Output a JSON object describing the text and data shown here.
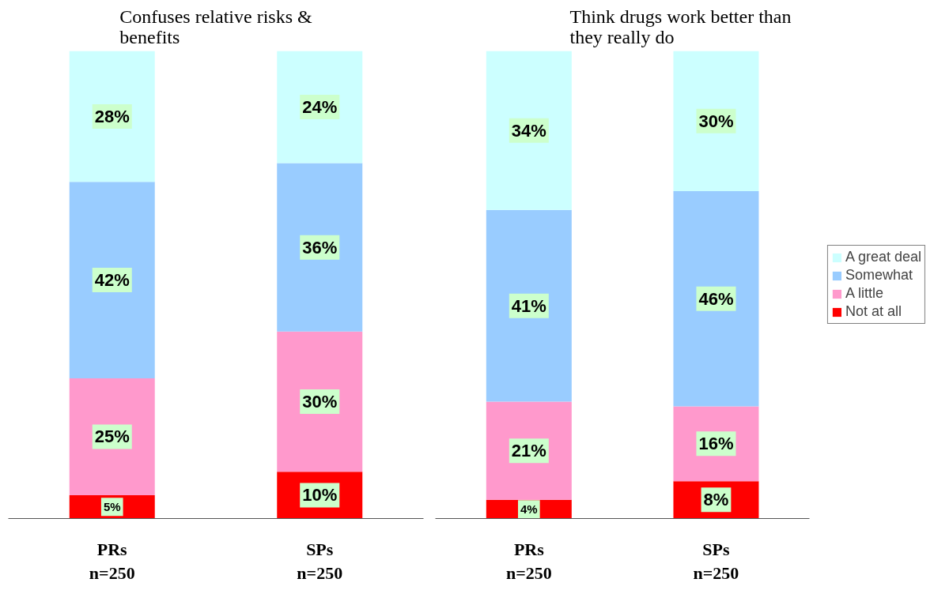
{
  "chart_data": [
    {
      "type": "bar",
      "stacked": true,
      "title": "Confuses relative risks & benefits",
      "categories": [
        "PRs\nn=250",
        "SPs\nn=250"
      ],
      "tick_labels": "x",
      "series": [
        {
          "color": "#ff0000",
          "values": [
            5,
            10
          ],
          "value_labels": [
            "5%",
            "10%"
          ]
        },
        {
          "color": "#ff99cc",
          "values": [
            25,
            30
          ],
          "value_labels": [
            "25%",
            "30%"
          ]
        },
        {
          "color": "#99ccff",
          "values": [
            42,
            36
          ],
          "value_labels": [
            "42%",
            "36%"
          ]
        },
        {
          "color": "#ccffff",
          "values": [
            28,
            24
          ],
          "value_labels": [
            "28%",
            "24%"
          ]
        }
      ]
    },
    {
      "type": "bar",
      "stacked": true,
      "title": "Think drugs work better than they really do",
      "categories": [
        "PRs\nn=250",
        "SPs\nn=250"
      ],
      "tick_labels": "x",
      "legend": "right",
      "series": [
        {
          "name": "Not at all",
          "color": "#ff0000",
          "values": [
            4,
            8
          ],
          "value_labels": [
            "4%",
            "8%"
          ]
        },
        {
          "name": "A little",
          "color": "#ff99cc",
          "values": [
            21,
            16
          ],
          "value_labels": [
            "21%",
            "16%"
          ]
        },
        {
          "name": "Somewhat",
          "color": "#99ccff",
          "values": [
            41,
            46
          ],
          "value_labels": [
            "41%",
            "46%"
          ]
        },
        {
          "name": "A great deal",
          "color": "#ccffff",
          "values": [
            34,
            30
          ],
          "value_labels": [
            "34%",
            "30%"
          ]
        }
      ]
    }
  ]
}
